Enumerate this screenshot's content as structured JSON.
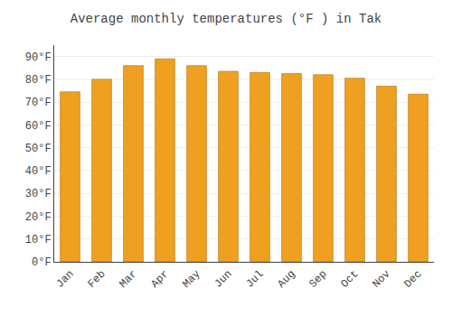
{
  "chart_data": {
    "type": "bar",
    "title": "Average monthly temperatures (°F ) in Tak",
    "categories": [
      "Jan",
      "Feb",
      "Mar",
      "Apr",
      "May",
      "Jun",
      "Jul",
      "Aug",
      "Sep",
      "Oct",
      "Nov",
      "Dec"
    ],
    "values": [
      74.5,
      80.0,
      86.0,
      89.0,
      86.0,
      83.5,
      83.0,
      82.5,
      82.0,
      80.5,
      77.0,
      73.5
    ],
    "color": "#F0A020",
    "ylim": [
      0,
      95
    ],
    "yticks": [
      {
        "value": 0,
        "label": "0°F"
      },
      {
        "value": 10,
        "label": "10°F"
      },
      {
        "value": 20,
        "label": "20°F"
      },
      {
        "value": 30,
        "label": "30°F"
      },
      {
        "value": 40,
        "label": "40°F"
      },
      {
        "value": 50,
        "label": "50°F"
      },
      {
        "value": 60,
        "label": "60°F"
      },
      {
        "value": 70,
        "label": "70°F"
      },
      {
        "value": 80,
        "label": "80°F"
      },
      {
        "value": 90,
        "label": "90°F"
      }
    ],
    "grid": true
  }
}
